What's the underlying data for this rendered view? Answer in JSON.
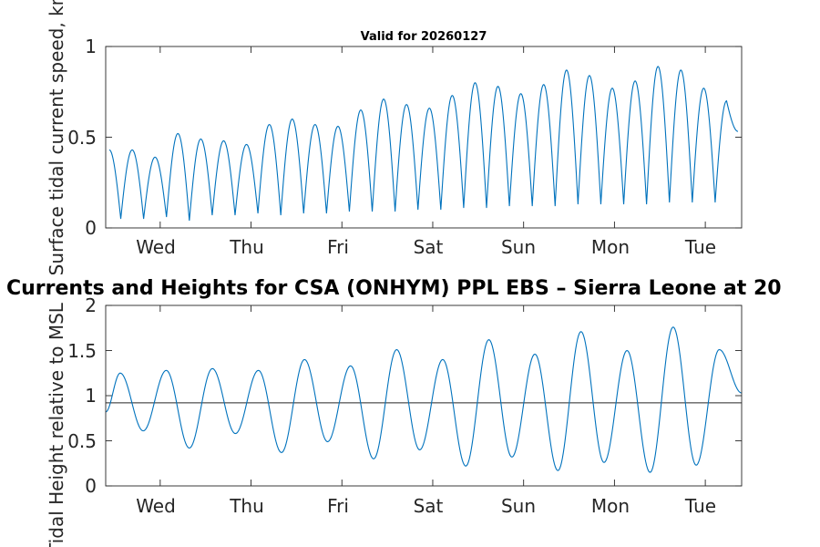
{
  "chart_data": [
    {
      "type": "line",
      "title": "Valid for 20260127",
      "xlabel": "",
      "ylabel": "Surface tidal current speed, kn",
      "xlim": [
        0,
        7.0
      ],
      "ylim": [
        0,
        1
      ],
      "yticks": [
        0,
        0.5,
        1
      ],
      "ytick_labels": [
        "0",
        "0.5",
        "1"
      ],
      "xticks": [
        0.6,
        1.6,
        2.6,
        3.6,
        4.6,
        5.6,
        6.6
      ],
      "xtick_labels": [
        "Wed",
        "Thu",
        "Fri",
        "Sat",
        "Sun",
        "Mon",
        "Tue"
      ],
      "series": [
        {
          "name": "current speed",
          "color": "#0072BD",
          "peaks": [
            0.43,
            0.43,
            0.39,
            0.52,
            0.49,
            0.48,
            0.46,
            0.57,
            0.6,
            0.57,
            0.56,
            0.65,
            0.71,
            0.68,
            0.66,
            0.73,
            0.8,
            0.78,
            0.74,
            0.79,
            0.87,
            0.84,
            0.77,
            0.81,
            0.89,
            0.87,
            0.77,
            0.7
          ],
          "troughs": [
            0.05,
            0.05,
            0.06,
            0.04,
            0.07,
            0.07,
            0.08,
            0.07,
            0.08,
            0.08,
            0.09,
            0.09,
            0.09,
            0.1,
            0.1,
            0.11,
            0.11,
            0.12,
            0.12,
            0.12,
            0.13,
            0.13,
            0.13,
            0.13,
            0.14,
            0.14,
            0.14
          ]
        }
      ]
    },
    {
      "type": "line",
      "title": "Currents and Heights for CSA (ONHYM) PPL EBS  – Sierra Leone at 20",
      "xlabel": "",
      "ylabel": "Tidal Height relative to MSL",
      "xlim": [
        0,
        7.0
      ],
      "ylim": [
        0,
        2
      ],
      "yticks": [
        0,
        0.5,
        1,
        1.5,
        2
      ],
      "ytick_labels": [
        "0",
        "0.5",
        "1",
        "1.5",
        "2"
      ],
      "xticks": [
        0.6,
        1.6,
        2.6,
        3.6,
        4.6,
        5.6,
        6.6
      ],
      "xtick_labels": [
        "Wed",
        "Thu",
        "Fri",
        "Sat",
        "Sun",
        "Mon",
        "Tue"
      ],
      "reference_line": 0.92,
      "series": [
        {
          "name": "tidal height",
          "color": "#0072BD",
          "start": 0.82,
          "extrema": [
            1.25,
            0.61,
            1.28,
            0.42,
            1.3,
            0.58,
            1.28,
            0.37,
            1.4,
            0.49,
            1.33,
            0.3,
            1.51,
            0.4,
            1.4,
            0.22,
            1.62,
            0.32,
            1.46,
            0.17,
            1.71,
            0.26,
            1.5,
            0.15,
            1.76,
            0.23,
            1.51
          ],
          "end": 1.03
        }
      ]
    }
  ]
}
